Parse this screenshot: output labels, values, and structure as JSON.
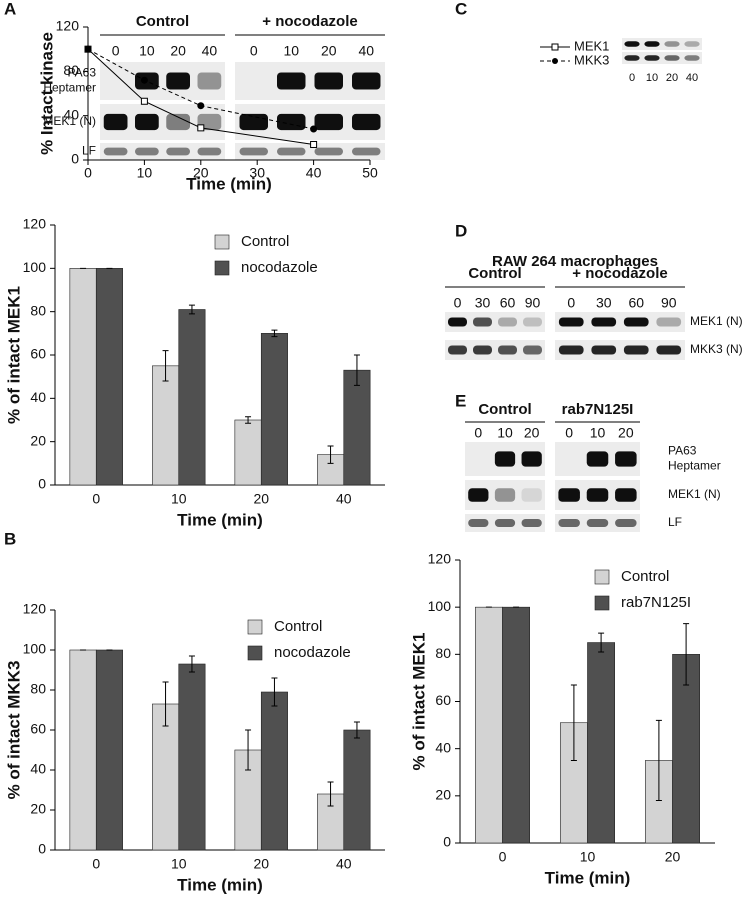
{
  "panel_labels": [
    "A",
    "B",
    "C",
    "D",
    "E"
  ],
  "blots": [
    {
      "groups": [
        "Control",
        "+ nocodazole"
      ],
      "lanes": [
        [
          "0",
          "10",
          "20",
          "40"
        ],
        [
          "0",
          "10",
          "20",
          "40"
        ]
      ],
      "rows": [
        [
          "PA63",
          "Heptamer"
        ],
        [
          "MEK1 (N)"
        ],
        [
          "LF"
        ]
      ]
    },
    {
      "lanes": [
        [
          "0",
          "10",
          "20",
          "40"
        ]
      ]
    },
    {
      "title": "RAW 264 macrophages",
      "groups": [
        "Control",
        "+ nocodazole"
      ],
      "lanes": [
        [
          "0",
          "30",
          "60",
          "90"
        ],
        [
          "0",
          "30",
          "60",
          "90"
        ]
      ],
      "rows": [
        [
          "MEK1 (N)"
        ],
        [
          "MKK3 (N)"
        ]
      ]
    },
    {
      "groups": [
        "Control",
        "rab7N125I"
      ],
      "lanes": [
        [
          "0",
          "10",
          "20"
        ],
        [
          "0",
          "10",
          "20"
        ]
      ],
      "rows": [
        [
          "PA63",
          "Heptamer"
        ],
        [
          "MEK1 (N)"
        ],
        [
          "LF"
        ]
      ]
    }
  ],
  "chart_data": [
    {
      "type": "bar",
      "xlabel": "Time (min)",
      "ylabel": "% of intact MEK1",
      "categories": [
        "0",
        "10",
        "20",
        "40"
      ],
      "series": [
        {
          "name": "Control",
          "color": "#d3d3d3",
          "values": [
            100,
            55,
            30,
            14
          ],
          "errors": [
            0,
            7,
            1.5,
            4
          ]
        },
        {
          "name": "nocodazole",
          "color": "#505050",
          "values": [
            100,
            81,
            70,
            53
          ],
          "errors": [
            0,
            2,
            1.5,
            7
          ]
        }
      ],
      "ylim": [
        0,
        120
      ],
      "yticks": [
        0,
        20,
        40,
        60,
        80,
        100,
        120
      ]
    },
    {
      "type": "bar",
      "xlabel": "Time (min)",
      "ylabel": "% of intact MKK3",
      "categories": [
        "0",
        "10",
        "20",
        "40"
      ],
      "series": [
        {
          "name": "Control",
          "color": "#d3d3d3",
          "values": [
            100,
            73,
            50,
            28
          ],
          "errors": [
            0,
            11,
            10,
            6
          ]
        },
        {
          "name": "nocodazole",
          "color": "#505050",
          "values": [
            100,
            93,
            79,
            60
          ],
          "errors": [
            0,
            4,
            7,
            4
          ]
        }
      ],
      "ylim": [
        0,
        120
      ],
      "yticks": [
        0,
        20,
        40,
        60,
        80,
        100,
        120
      ]
    },
    {
      "type": "line",
      "xlabel": "Time (min)",
      "ylabel": "% Intact kinase",
      "x": [
        0,
        10,
        20,
        40
      ],
      "series": [
        {
          "name": "MEK1",
          "color": "#000000",
          "marker": "square",
          "dashed": false,
          "values": [
            100,
            53,
            29,
            14
          ]
        },
        {
          "name": "MKK3",
          "color": "#000000",
          "marker": "circle",
          "dashed": true,
          "values": [
            100,
            72,
            49,
            28
          ]
        }
      ],
      "xlim": [
        0,
        50
      ],
      "xticks": [
        0,
        10,
        20,
        30,
        40,
        50
      ],
      "ylim": [
        0,
        120
      ],
      "yticks": [
        0,
        40,
        80,
        120
      ]
    },
    {
      "type": "bar",
      "xlabel": "Time (min)",
      "ylabel": "% of intact MEK1",
      "categories": [
        "0",
        "10",
        "20"
      ],
      "series": [
        {
          "name": "Control",
          "color": "#d3d3d3",
          "values": [
            100,
            51,
            35
          ],
          "errors": [
            0,
            16,
            17
          ]
        },
        {
          "name": "rab7N125I",
          "color": "#505050",
          "values": [
            100,
            85,
            80
          ],
          "errors": [
            0,
            4,
            13
          ]
        }
      ],
      "ylim": [
        0,
        120
      ],
      "yticks": [
        0,
        20,
        40,
        60,
        80,
        100,
        120
      ]
    }
  ]
}
